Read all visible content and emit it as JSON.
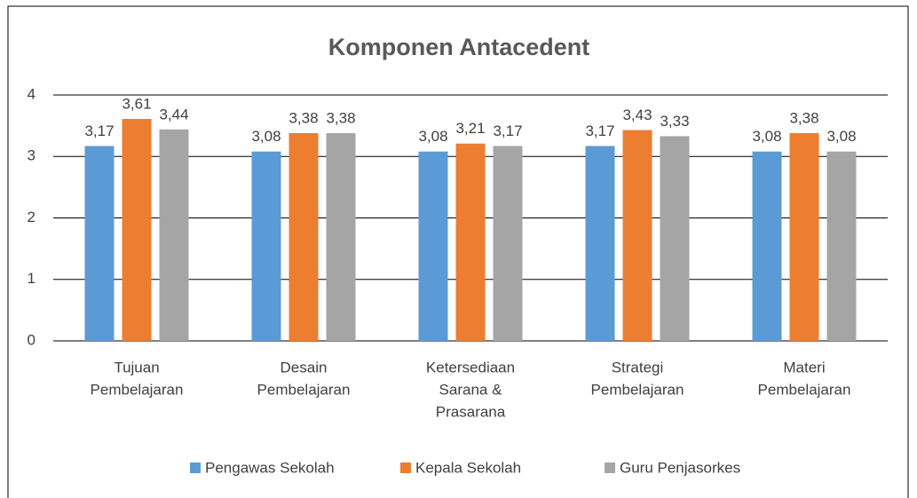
{
  "chart_data": {
    "type": "bar",
    "title": "Komponen Antacedent",
    "categories": [
      [
        "Tujuan",
        "Pembelajaran"
      ],
      [
        "Desain",
        "Pembelajaran"
      ],
      [
        "Ketersediaan",
        "Sarana &",
        "Prasarana"
      ],
      [
        "Strategi",
        "Pembelajaran"
      ],
      [
        "Materi",
        "Pembelajaran"
      ]
    ],
    "series": [
      {
        "name": "Pengawas Sekolah",
        "color": "#5b9bd5",
        "values": [
          3.17,
          3.08,
          3.08,
          3.17,
          3.08
        ],
        "value_labels": [
          "3,17",
          "3,08",
          "3,08",
          "3,17",
          "3,08"
        ]
      },
      {
        "name": "Kepala Sekolah",
        "color": "#ed7d31",
        "values": [
          3.61,
          3.38,
          3.21,
          3.43,
          3.38
        ],
        "value_labels": [
          "3,61",
          "3,38",
          "3,21",
          "3,43",
          "3,38"
        ]
      },
      {
        "name": "Guru Penjasorkes",
        "color": "#a5a5a5",
        "values": [
          3.44,
          3.38,
          3.17,
          3.33,
          3.08
        ],
        "value_labels": [
          "3,44",
          "3,38",
          "3,17",
          "3,33",
          "3,08"
        ]
      }
    ],
    "ylim": [
      0,
      4
    ],
    "yticks": [
      0,
      1,
      2,
      3,
      4
    ],
    "grid": true,
    "legend": "bottom"
  }
}
